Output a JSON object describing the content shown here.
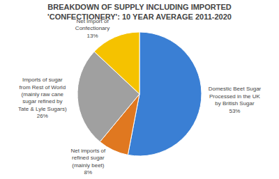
{
  "chart_data": {
    "type": "pie",
    "title": "BREAKDOWN OF SUPPLY INCLUDING IMPORTED\n'CONFECTIONERY': 10 YEAR AVERAGE 2011-2020",
    "categories": [
      "Domestic Beet Sugar Processed in the UK by British Sugar",
      "Net imports of refined sugar (mainly beet)",
      "Imports of sugar from Rest of World (mainly raw cane sugar refined by Tate & Lyle Sugars)",
      "Net Import of Confectionary"
    ],
    "values": [
      53,
      8,
      26,
      13
    ],
    "value_labels": [
      "53%",
      "8%",
      "26%",
      "13%"
    ],
    "colors": [
      "#3a7fd4",
      "#e07820",
      "#a0a0a0",
      "#f5c200"
    ]
  }
}
